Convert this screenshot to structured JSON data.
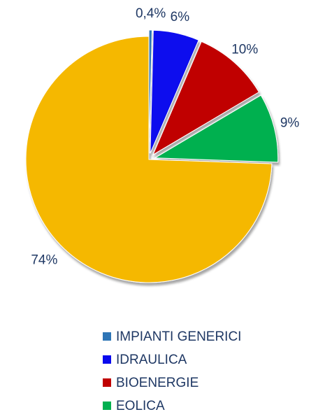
{
  "chart_data": {
    "type": "pie",
    "categories": [
      "IMPIANTI GENERICI",
      "IDRAULICA",
      "BIOENERGIE",
      "EOLICA",
      null
    ],
    "values": [
      0.4,
      6,
      10,
      9,
      74
    ],
    "value_labels": [
      "0,4%",
      "6%",
      "10%",
      "9%",
      "74%"
    ],
    "colors": [
      "#2e75b6",
      "#0a0aee",
      "#c00000",
      "#00b050",
      "#f5b800"
    ]
  }
}
